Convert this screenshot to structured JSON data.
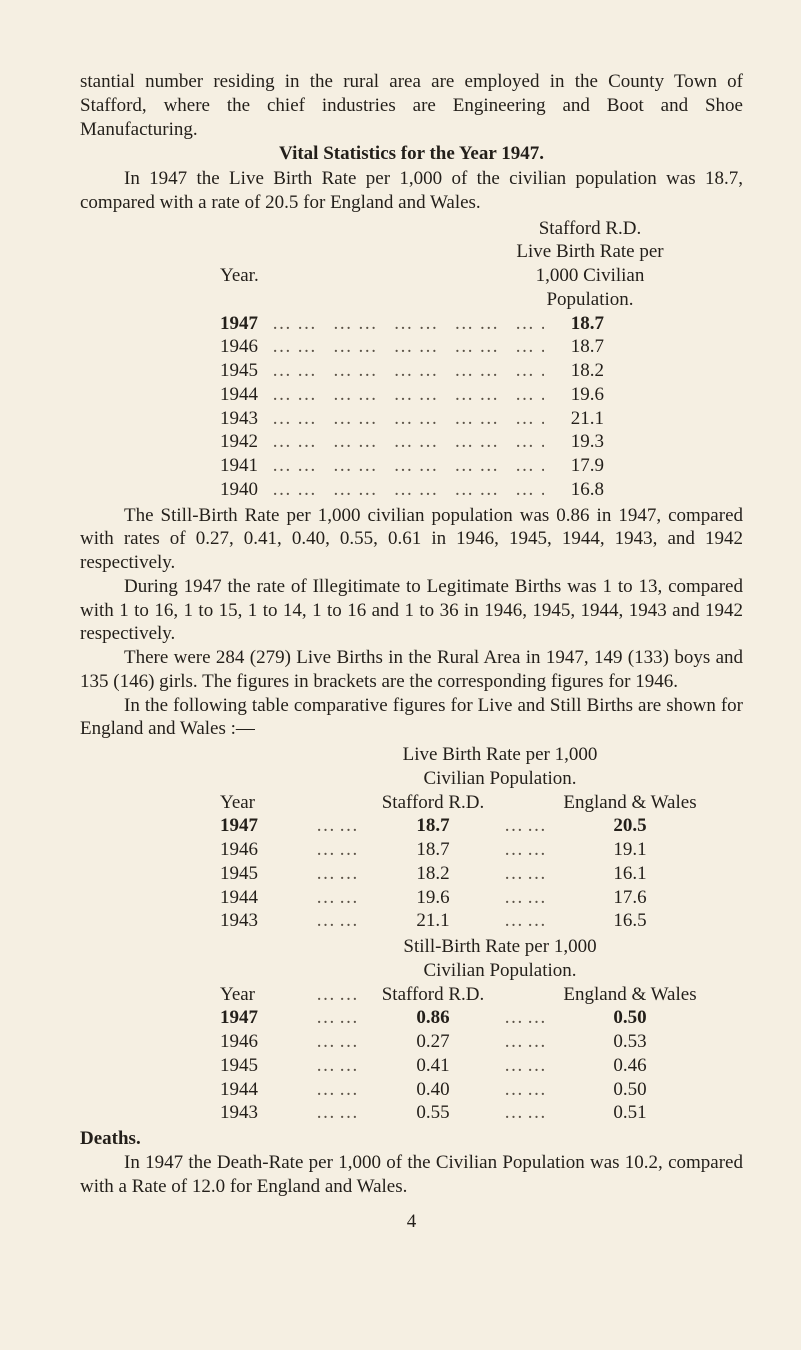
{
  "intro": {
    "p1": "stantial number residing in the rural area are employed in the County Town of Stafford, where the chief industries are Engineering and Boot and Shoe Manufacturing.",
    "heading": "Vital Statistics for the Year 1947.",
    "p2": "In 1947 the Live Birth Rate per 1,000 of the civilian population was 18.7, compared with a rate of 20.5 for England and Wales."
  },
  "table1": {
    "header_left": "Year.",
    "header_right_1": "Stafford R.D.",
    "header_right_2": "Live Birth Rate per",
    "header_right_3": "1,000 Civilian",
    "header_right_4": "Population.",
    "rows": [
      {
        "year": "1947",
        "value": "18.7",
        "bold": true
      },
      {
        "year": "1946",
        "value": "18.7"
      },
      {
        "year": "1945",
        "value": "18.2"
      },
      {
        "year": "1944",
        "value": "19.6"
      },
      {
        "year": "1943",
        "value": "21.1"
      },
      {
        "year": "1942",
        "value": "19.3"
      },
      {
        "year": "1941",
        "value": "17.9"
      },
      {
        "year": "1940",
        "value": "16.8"
      }
    ]
  },
  "mid": {
    "p1": "The Still-Birth Rate per 1,000 civilian population was 0.86 in 1947, compared with rates of 0.27, 0.41, 0.40, 0.55, 0.61 in 1946, 1945, 1944, 1943, and 1942 respectively.",
    "p2": "During 1947 the rate of Illegitimate to Legitimate Births was 1 to 13, compared with 1 to 16, 1 to 15, 1 to 14, 1 to 16 and 1 to 36 in 1946, 1945, 1944, 1943 and 1942 respectively.",
    "p3": "There were 284 (279) Live Births in the Rural Area in 1947, 149 (133) boys and 135 (146) girls. The figures in brackets are the corresponding figures for 1946.",
    "p4": "In the following table comparative figures for Live and Still Births are shown for England and Wales :—"
  },
  "table2a": {
    "title1": "Live Birth Rate per 1,000",
    "title2": "Civilian Population.",
    "col_year": "Year",
    "col_mid": "Stafford R.D.",
    "col_right": "England & Wales",
    "rows": [
      {
        "year": "1947",
        "mid": "18.7",
        "right": "20.5",
        "bold": true
      },
      {
        "year": "1946",
        "mid": "18.7",
        "right": "19.1"
      },
      {
        "year": "1945",
        "mid": "18.2",
        "right": "16.1"
      },
      {
        "year": "1944",
        "mid": "19.6",
        "right": "17.6"
      },
      {
        "year": "1943",
        "mid": "21.1",
        "right": "16.5"
      }
    ]
  },
  "table2b": {
    "title1": "Still-Birth Rate per 1,000",
    "title2": "Civilian Population.",
    "col_year": "Year",
    "col_mid": "Stafford R.D.",
    "col_right": "England & Wales",
    "rows": [
      {
        "year": "1947",
        "mid": "0.86",
        "right": "0.50",
        "bold": true
      },
      {
        "year": "1946",
        "mid": "0.27",
        "right": "0.53"
      },
      {
        "year": "1945",
        "mid": "0.41",
        "right": "0.46"
      },
      {
        "year": "1944",
        "mid": "0.40",
        "right": "0.50"
      },
      {
        "year": "1943",
        "mid": "0.55",
        "right": "0.51"
      }
    ]
  },
  "deaths": {
    "heading": "Deaths.",
    "p": "In 1947 the Death-Rate per 1,000 of the Civilian Population was 10.2, compared with a Rate of 12.0 for England and Wales."
  },
  "page_number": "4",
  "dots": "…… …… …… …… ……",
  "small_dots": "……"
}
